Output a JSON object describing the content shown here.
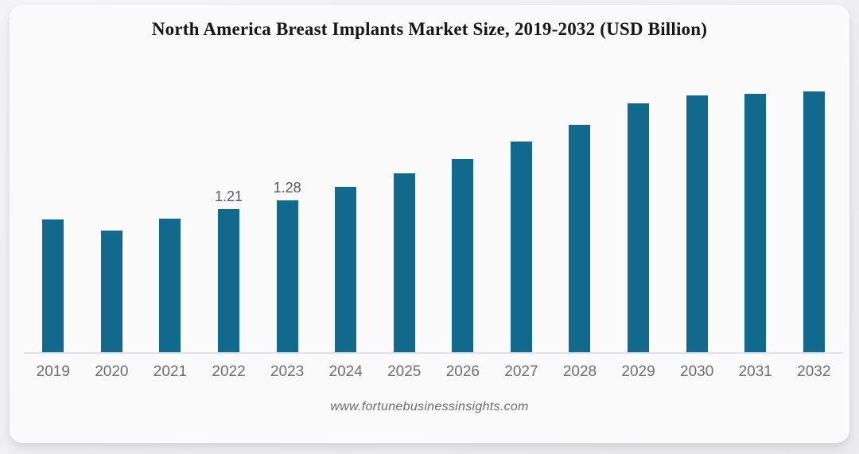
{
  "page": {
    "title": "North America Breast Implants Market Size, 2019-2032 (USD Billion)",
    "source_label": "www.fortunebusinessinsights.com"
  },
  "chart_data": {
    "type": "bar",
    "title": "North America Breast Implants Market Size, 2019-2032 (USD Billion)",
    "unit": "USD Billion",
    "categories": [
      "2019",
      "2020",
      "2021",
      "2022",
      "2023",
      "2024",
      "2025",
      "2026",
      "2027",
      "2028",
      "2029",
      "2030",
      "2031",
      "2032"
    ],
    "values": [
      1.12,
      1.03,
      1.13,
      1.21,
      1.28,
      1.4,
      1.51,
      1.63,
      1.78,
      1.92,
      2.1,
      2.17,
      2.18,
      2.2
    ],
    "shown_labels": [
      "",
      "",
      "",
      "1.21",
      "1.28",
      "",
      "",
      "",
      "",
      "",
      "",
      "",
      "",
      ""
    ],
    "xlabel": "",
    "ylabel": "",
    "ylim": [
      0,
      2.35
    ],
    "grid": false,
    "legend": false,
    "y_axis_visible": false,
    "source_label": "www.fortunebusinessinsights.com",
    "colors": {
      "bar": "#11698e",
      "value_label": "#58595b",
      "tick_label": "#6d6d6d",
      "axis_line": "#e2e2e4",
      "title": "#171717",
      "card_background": "#fafafb",
      "page_background": "#f0f0f2"
    }
  }
}
